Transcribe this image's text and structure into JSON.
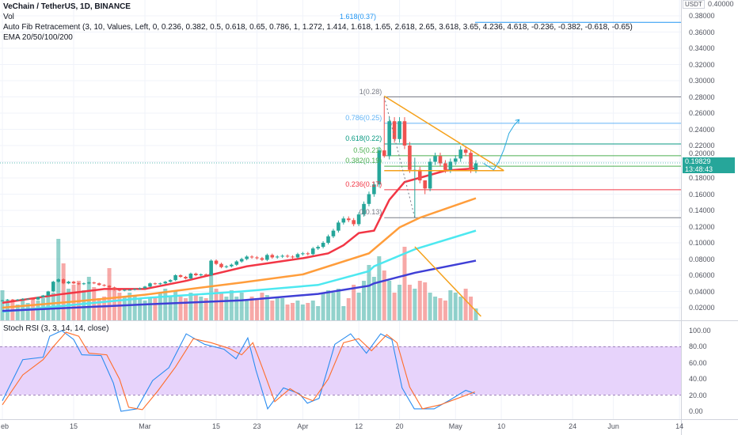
{
  "header": {
    "symbol_title": "VeChain / TetherUS, 1D, BINANCE",
    "vol_label": "Vol",
    "fib_label": "Auto Fib Retracement (3, 10, Values, Left, 0, 0.236, 0.382, 0.5, 0.618, 0.65, 0.786, 1, 1.272, 1.414, 1.618, 1.65, 2.618, 2.65, 3.618, 3.65, 4.236, 4.618, -0.236, -0.382, -0.618, -0.65)",
    "ema_label": "EMA 20/50/100/200"
  },
  "price_axis": {
    "currency": "USDT",
    "top_partial": "0.40000",
    "ticks": [
      "0.38000",
      "0.36000",
      "0.34000",
      "0.32000",
      "0.30000",
      "0.28000",
      "0.26000",
      "0.24000",
      "0.22000",
      "0.20000",
      "0.18000",
      "0.16000",
      "0.14000",
      "0.12000",
      "0.10000",
      "0.08000",
      "0.06000",
      "0.04000",
      "0.02000"
    ],
    "current_price": "0.19829",
    "countdown": "13:48:43"
  },
  "stoch_axis": {
    "ticks": [
      "100.00",
      "80.00",
      "60.00",
      "40.00",
      "20.00",
      "0.00"
    ]
  },
  "stoch_label": "Stoch RSI (3, 3, 14, 14, close)",
  "time_axis": [
    {
      "label": "eb",
      "day": 0
    },
    {
      "label": "15",
      "day": 14
    },
    {
      "label": "Mar",
      "day": 28
    },
    {
      "label": "15",
      "day": 42
    },
    {
      "label": "23",
      "day": 50
    },
    {
      "label": "Apr",
      "day": 59
    },
    {
      "label": "12",
      "day": 70
    },
    {
      "label": "20",
      "day": 78
    },
    {
      "label": "May",
      "day": 89
    },
    {
      "label": "10",
      "day": 98
    },
    {
      "label": "24",
      "day": 112
    },
    {
      "label": "Jun",
      "day": 120
    },
    {
      "label": "14",
      "day": 133
    }
  ],
  "colors": {
    "up": "#26a69a",
    "down": "#ef5350",
    "ema20": "#f23645",
    "ema50": "#ff9d3b",
    "ema100": "#4de8f0",
    "ema200": "#3f3fd6",
    "stoch_k": "#2a8cf0",
    "stoch_d": "#ff6d2a",
    "stoch_band": "#e7d3fb",
    "trend": "#f5a11b",
    "projection": "#29a8e0"
  },
  "chart_data": {
    "type": "candlestick",
    "title": "VeChain / TetherUS, 1D, BINANCE",
    "ylim": [
      0.0,
      0.4
    ],
    "closes": [
      0.029,
      0.03,
      0.029,
      0.03,
      0.031,
      0.031,
      0.03,
      0.033,
      0.035,
      0.04,
      0.052,
      0.055,
      0.05,
      0.052,
      0.05,
      0.049,
      0.05,
      0.051,
      0.05,
      0.048,
      0.047,
      0.045,
      0.042,
      0.041,
      0.042,
      0.042,
      0.043,
      0.044,
      0.046,
      0.05,
      0.049,
      0.05,
      0.052,
      0.054,
      0.06,
      0.058,
      0.056,
      0.062,
      0.06,
      0.061,
      0.06,
      0.078,
      0.074,
      0.07,
      0.071,
      0.073,
      0.077,
      0.08,
      0.083,
      0.082,
      0.081,
      0.079,
      0.085,
      0.082,
      0.083,
      0.084,
      0.083,
      0.082,
      0.086,
      0.087,
      0.086,
      0.093,
      0.095,
      0.1,
      0.108,
      0.115,
      0.125,
      0.13,
      0.128,
      0.123,
      0.135,
      0.148,
      0.16,
      0.172,
      0.214,
      0.207,
      0.25,
      0.228,
      0.25,
      0.22,
      0.19,
      0.19,
      0.177,
      0.167,
      0.2,
      0.207,
      0.198,
      0.19,
      0.2,
      0.204,
      0.215,
      0.211,
      0.19,
      0.198
    ],
    "wick_overrides": {
      "75": [
        0.28,
        0.205
      ],
      "81": [
        0.205,
        0.131
      ],
      "83": [
        0.177,
        0.16
      ]
    },
    "volumes": [
      38,
      25,
      25,
      20,
      25,
      22,
      28,
      25,
      28,
      30,
      35,
      103,
      72,
      40,
      45,
      50,
      38,
      55,
      42,
      28,
      30,
      66,
      40,
      35,
      30,
      35,
      32,
      28,
      25,
      28,
      30,
      35,
      40,
      30,
      38,
      30,
      28,
      35,
      32,
      30,
      28,
      60,
      40,
      35,
      30,
      38,
      30,
      35,
      25,
      30,
      28,
      35,
      32,
      25,
      30,
      28,
      20,
      22,
      25,
      20,
      22,
      25,
      18,
      35,
      38,
      35,
      40,
      18,
      28,
      45,
      35,
      50,
      70,
      55,
      81,
      63,
      50,
      35,
      45,
      93,
      45,
      40,
      50,
      48,
      35,
      30,
      28,
      25,
      38,
      35,
      30,
      40,
      30,
      15
    ],
    "ema": [
      {
        "name": "EMA 20",
        "color_key": "ema20",
        "points": [
          [
            0,
            0.026
          ],
          [
            12,
            0.037
          ],
          [
            20,
            0.043
          ],
          [
            28,
            0.043
          ],
          [
            36,
            0.053
          ],
          [
            48,
            0.071
          ],
          [
            59,
            0.081
          ],
          [
            64,
            0.087
          ],
          [
            67,
            0.097
          ],
          [
            70,
            0.112
          ],
          [
            73,
            0.115
          ],
          [
            76,
            0.153
          ],
          [
            79,
            0.175
          ],
          [
            87,
            0.189
          ],
          [
            93,
            0.192
          ]
        ]
      },
      {
        "name": "EMA 50",
        "color_key": "ema50",
        "points": [
          [
            0,
            0.02
          ],
          [
            15,
            0.028
          ],
          [
            28,
            0.036
          ],
          [
            47,
            0.051
          ],
          [
            59,
            0.061
          ],
          [
            72,
            0.087
          ],
          [
            78,
            0.119
          ],
          [
            82,
            0.131
          ],
          [
            93,
            0.155
          ]
        ]
      },
      {
        "name": "EMA 100",
        "color_key": "ema100",
        "points": [
          [
            0,
            0.015
          ],
          [
            28,
            0.032
          ],
          [
            47,
            0.04
          ],
          [
            62,
            0.048
          ],
          [
            72,
            0.065
          ],
          [
            73,
            0.071
          ],
          [
            81,
            0.092
          ],
          [
            93,
            0.115
          ]
        ]
      },
      {
        "name": "EMA 200",
        "color_key": "ema200",
        "points": [
          [
            0,
            0.016
          ],
          [
            28,
            0.024
          ],
          [
            47,
            0.029
          ],
          [
            62,
            0.037
          ],
          [
            72,
            0.047
          ],
          [
            73,
            0.05
          ],
          [
            81,
            0.063
          ],
          [
            93,
            0.078
          ]
        ]
      }
    ],
    "fib_levels": [
      {
        "label": "1.618(0.37)",
        "price": 0.372,
        "color": "#2196f3"
      },
      {
        "label": "1(0.28)",
        "price": 0.28,
        "color": "#787b86"
      },
      {
        "label": "0.786(0.25)",
        "price": 0.2475,
        "color": "#64b5f6"
      },
      {
        "label": "0.618(0.22)",
        "price": 0.222,
        "color": "#089981"
      },
      {
        "label": "0.5(0.21)",
        "price": 0.2075,
        "color": "#4caf50"
      },
      {
        "label": "0.382(0.19)",
        "price": 0.1945,
        "color": "#4caf50"
      },
      {
        "label": "0.236(0.17)",
        "price": 0.1655,
        "color": "#f23645"
      },
      {
        "label": "0(0.13)",
        "price": 0.131,
        "color": "#787b86"
      }
    ],
    "stoch_rsi": {
      "ylim": [
        0,
        100
      ],
      "upper_band": 80,
      "lower_band": 20,
      "k": [
        [
          0,
          13
        ],
        [
          4,
          64
        ],
        [
          8,
          67
        ],
        [
          9.3,
          93
        ],
        [
          11.7,
          100
        ],
        [
          14,
          89
        ],
        [
          15.6,
          70
        ],
        [
          19.4,
          69
        ],
        [
          21.8,
          35
        ],
        [
          23.3,
          0
        ],
        [
          26.4,
          3
        ],
        [
          29.5,
          38
        ],
        [
          32.7,
          54
        ],
        [
          36.1,
          96
        ],
        [
          39.7,
          83
        ],
        [
          43.5,
          77
        ],
        [
          45.9,
          65
        ],
        [
          48.2,
          91
        ],
        [
          49.8,
          51
        ],
        [
          52.1,
          3
        ],
        [
          55.2,
          29
        ],
        [
          58.3,
          22
        ],
        [
          59.9,
          10
        ],
        [
          62.2,
          16
        ],
        [
          65.3,
          83
        ],
        [
          68.4,
          96
        ],
        [
          71.5,
          72
        ],
        [
          74.3,
          96
        ],
        [
          76.5,
          89
        ],
        [
          78.5,
          29
        ],
        [
          80.9,
          3
        ],
        [
          84.8,
          3
        ],
        [
          87.9,
          14
        ],
        [
          91,
          26
        ],
        [
          92.8,
          22
        ]
      ],
      "d": [
        [
          0,
          8
        ],
        [
          4,
          45
        ],
        [
          8,
          64
        ],
        [
          10,
          80
        ],
        [
          12.5,
          98
        ],
        [
          15,
          93
        ],
        [
          17,
          72
        ],
        [
          20.5,
          70
        ],
        [
          23,
          40
        ],
        [
          24.8,
          5
        ],
        [
          27.5,
          2
        ],
        [
          30.5,
          25
        ],
        [
          34,
          55
        ],
        [
          37.5,
          90
        ],
        [
          41,
          85
        ],
        [
          44.5,
          78
        ],
        [
          47,
          70
        ],
        [
          49.2,
          85
        ],
        [
          51,
          55
        ],
        [
          53.5,
          12
        ],
        [
          56.5,
          28
        ],
        [
          59,
          18
        ],
        [
          61,
          13
        ],
        [
          64,
          40
        ],
        [
          67,
          85
        ],
        [
          70,
          90
        ],
        [
          72.5,
          75
        ],
        [
          75.5,
          95
        ],
        [
          77.5,
          85
        ],
        [
          80,
          30
        ],
        [
          82.5,
          3
        ],
        [
          86,
          8
        ],
        [
          89,
          15
        ],
        [
          92.8,
          24
        ]
      ]
    },
    "annotations": {
      "triangle_upper": [
        [
          75,
          0.281
        ],
        [
          98.5,
          0.189
        ]
      ],
      "triangle_base": [
        [
          75,
          0.189
        ],
        [
          98.5,
          0.189
        ]
      ],
      "volume_trend": [
        [
          81,
          93
        ],
        [
          94,
          5
        ]
      ],
      "projection": [
        [
          94.5,
          0.198
        ],
        [
          96.5,
          0.19
        ],
        [
          97.5,
          0.2
        ],
        [
          98.5,
          0.215
        ],
        [
          99.5,
          0.235
        ],
        [
          100.5,
          0.245
        ],
        [
          101.5,
          0.252
        ]
      ],
      "zigzag": [
        [
          75,
          0.28
        ],
        [
          81,
          0.131
        ]
      ]
    }
  }
}
